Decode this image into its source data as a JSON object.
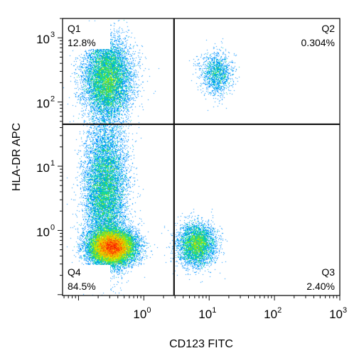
{
  "chart_data": {
    "type": "scatter",
    "subtype": "flow-cytometry-density-quadrant-plot",
    "title": "",
    "xlabel": "CD123 FITC",
    "ylabel": "HLA-DR APC",
    "x_scale": "log",
    "y_scale": "log",
    "xlim": [
      0.057,
      1000
    ],
    "ylim": [
      0.097,
      2000
    ],
    "x_ticks": [
      {
        "value": 1,
        "base": "10",
        "exp": "0"
      },
      {
        "value": 10,
        "base": "10",
        "exp": "1"
      },
      {
        "value": 100,
        "base": "10",
        "exp": "2"
      },
      {
        "value": 1000,
        "base": "10",
        "exp": "3"
      }
    ],
    "y_ticks": [
      {
        "value": 1,
        "base": "10",
        "exp": "0"
      },
      {
        "value": 10,
        "base": "10",
        "exp": "1"
      },
      {
        "value": 100,
        "base": "10",
        "exp": "2"
      },
      {
        "value": 1000,
        "base": "10",
        "exp": "3"
      }
    ],
    "grid": false,
    "legend": "none",
    "gates": {
      "x": 2.9,
      "y": 45
    },
    "quadrants": [
      {
        "name": "Q1",
        "percent": "12.8%",
        "position": "top-left"
      },
      {
        "name": "Q2",
        "percent": "0.304%",
        "position": "top-right"
      },
      {
        "name": "Q3",
        "percent": "2.40%",
        "position": "bottom-right"
      },
      {
        "name": "Q4",
        "percent": "84.5%",
        "position": "bottom-left"
      }
    ],
    "populations": [
      {
        "name": "",
        "center": [
          0.33,
          0.55
        ],
        "spread": [
          0.17,
          0.13
        ],
        "relative_density": 1.0
      },
      {
        "name": "",
        "center": [
          0.26,
          4.0
        ],
        "spread": [
          0.16,
          0.55
        ],
        "relative_density": 0.55
      },
      {
        "name": "",
        "center": [
          0.28,
          230
        ],
        "spread": [
          0.18,
          0.3
        ],
        "relative_density": 0.5
      },
      {
        "name": "",
        "center": [
          6.5,
          0.6
        ],
        "spread": [
          0.14,
          0.16
        ],
        "relative_density": 0.25
      },
      {
        "name": "",
        "center": [
          13,
          280
        ],
        "spread": [
          0.12,
          0.16
        ],
        "relative_density": 0.08
      }
    ],
    "colormap": [
      "#0000cc",
      "#0050ff",
      "#00b4ff",
      "#00e6a0",
      "#7de600",
      "#f0e600",
      "#ff9600",
      "#ff2000",
      "#d20000"
    ]
  }
}
